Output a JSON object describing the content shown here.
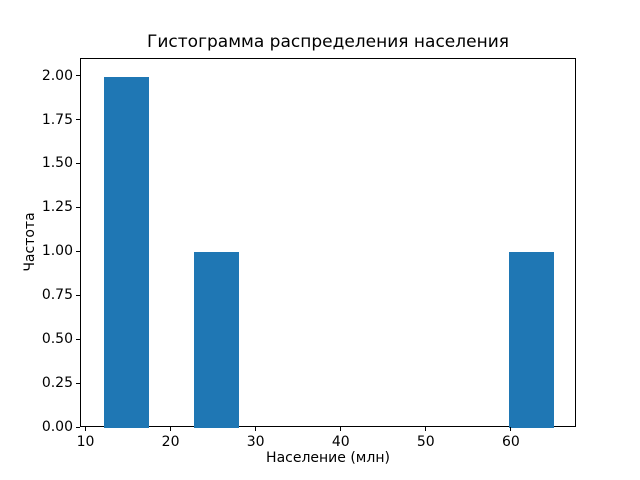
{
  "figure": {
    "background_color": "#ffffff",
    "text_color": "#000000",
    "spine_color": "#000000"
  },
  "chart_data": {
    "type": "bar",
    "chart_kind": "histogram",
    "title": "Гистограмма распределения населения",
    "xlabel": "Население (млн)",
    "ylabel": "Частота",
    "bar_color": "#1f77b4",
    "bars": [
      {
        "x_start": 12.0,
        "x_end": 17.3,
        "frequency": 2
      },
      {
        "x_start": 22.6,
        "x_end": 27.9,
        "frequency": 1
      },
      {
        "x_start": 59.7,
        "x_end": 65.0,
        "frequency": 1
      }
    ],
    "bin_edges": [
      12.0,
      17.3,
      22.6,
      27.9,
      33.2,
      38.5,
      43.8,
      49.1,
      54.4,
      59.7,
      65.0
    ],
    "bin_counts": [
      2,
      0,
      1,
      0,
      0,
      0,
      0,
      0,
      0,
      1
    ],
    "xlim": [
      9.35,
      67.65
    ],
    "ylim": [
      0,
      2.1
    ],
    "x_ticks": [
      10,
      20,
      30,
      40,
      50,
      60
    ],
    "x_tick_labels": [
      "10",
      "20",
      "30",
      "40",
      "50",
      "60"
    ],
    "y_ticks": [
      0,
      0.25,
      0.5,
      0.75,
      1.0,
      1.25,
      1.5,
      1.75,
      2.0
    ],
    "y_tick_labels": [
      "0.00",
      "0.25",
      "0.50",
      "0.75",
      "1.00",
      "1.25",
      "1.50",
      "1.75",
      "2.00"
    ],
    "grid": false,
    "legend": null
  }
}
